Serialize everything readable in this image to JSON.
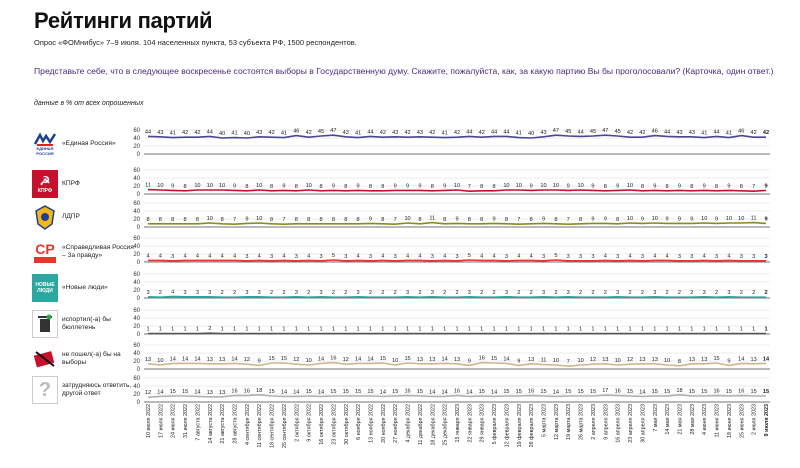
{
  "header": {
    "title": "Рейтинги партий",
    "subtitle": "Опрос «ФОМнибус» 7–9 июля. 104 населенных пункта, 53 субъекта РФ, 1500 респондентов.",
    "question": "Представьте себе, что в следующее воскресенье состоятся выборы в Государственную думу. Скажите, пожалуйста, как, за какую партию Вы бы проголосовали? (Карточка, один ответ.)",
    "units": "данные в % от всех опрошенных"
  },
  "icons": {
    "er": "united-russia-logo",
    "kprf": "kprf-logo",
    "ldpr": "ldpr-logo",
    "sr": "sr-logo",
    "nl": "new-people-logo",
    "spoil": "trash-bin-icon",
    "novote": "no-vote-icon",
    "dk": "question-mark-icon"
  },
  "logo_text": {
    "er_line1": "ЕДИНАЯ",
    "er_line2": "РОССИЯ",
    "kprf": "КПРФ",
    "sr": "СР",
    "nl_line1": "НОВЫЕ",
    "nl_line2": "ЛЮДИ",
    "dk": "?"
  },
  "chart_data": {
    "type": "line",
    "ylim": [
      0,
      60
    ],
    "yticks": [
      0,
      20,
      40,
      60
    ],
    "x": [
      "10 июля 2022",
      "17 июля 2022",
      "24 июля 2022",
      "31 июля 2022",
      "7 августа 2022",
      "14 августа 2022",
      "21 августа 2022",
      "28 августа 2022",
      "4 сентября 2022",
      "11 сентября 2022",
      "18 сентября 2022",
      "25 сентября 2022",
      "2 октября 2022",
      "9 октября 2022",
      "16 октября 2022",
      "23 октября 2022",
      "30 октября 2022",
      "6 ноября 2022",
      "13 ноября 2022",
      "20 ноября 2022",
      "27 ноября 2022",
      "4 декабря 2022",
      "11 декабря 2022",
      "18 декабря 2022",
      "25 декабря 2022",
      "15 января 2023",
      "22 января 2023",
      "29 января 2023",
      "5 февраля 2023",
      "12 февраля 2023",
      "19 февраля 2023",
      "26 февраля 2023",
      "5 марта 2023",
      "12 марта 2023",
      "19 марта 2023",
      "26 марта 2023",
      "2 апреля 2023",
      "9 апреля 2023",
      "16 апреля 2023",
      "23 апреля 2023",
      "30 апреля 2023",
      "7 мая 2023",
      "14 мая 2023",
      "21 мая 2023",
      "28 мая 2023",
      "4 июня 2023",
      "11 июня 2023",
      "18 июня 2023",
      "25 июня 2023",
      "2 июля 2023",
      "9 июля 2023"
    ],
    "series": [
      {
        "label": "«Единая Россия»",
        "color": "#4b4596",
        "values": [
          44,
          43,
          41,
          42,
          42,
          44,
          40,
          41,
          40,
          43,
          42,
          41,
          46,
          42,
          45,
          47,
          43,
          41,
          44,
          42,
          43,
          42,
          43,
          42,
          41,
          42,
          44,
          42,
          44,
          44,
          41,
          40,
          43,
          47,
          45,
          44,
          45,
          47,
          45,
          42,
          42,
          46,
          44,
          43,
          43,
          41,
          44,
          41,
          46,
          42,
          42
        ]
      },
      {
        "label": "КПРФ",
        "color": "#c8102e",
        "values": [
          11,
          10,
          9,
          8,
          10,
          10,
          10,
          9,
          8,
          10,
          8,
          9,
          8,
          10,
          8,
          9,
          8,
          9,
          8,
          8,
          9,
          9,
          9,
          8,
          9,
          10,
          7,
          8,
          8,
          10,
          10,
          9,
          10,
          10,
          9,
          10,
          9,
          8,
          9,
          10,
          8,
          9,
          8,
          9,
          8,
          9,
          8,
          9,
          8,
          7,
          9
        ]
      },
      {
        "label": "ЛДПР",
        "color": "#8a8a1a",
        "values": [
          8,
          8,
          8,
          8,
          8,
          10,
          8,
          7,
          9,
          10,
          8,
          7,
          8,
          8,
          8,
          8,
          8,
          8,
          9,
          8,
          7,
          10,
          8,
          11,
          8,
          9,
          8,
          8,
          9,
          8,
          7,
          8,
          9,
          8,
          7,
          8,
          9,
          9,
          8,
          10,
          9,
          10,
          9,
          9,
          9,
          10,
          9,
          10,
          10,
          11,
          9
        ]
      },
      {
        "label": "«Справедливая Россия – За правду»",
        "color": "#e8352b",
        "values": [
          4,
          4,
          3,
          4,
          4,
          4,
          4,
          4,
          3,
          4,
          3,
          4,
          3,
          4,
          3,
          5,
          3,
          4,
          3,
          4,
          3,
          4,
          4,
          3,
          4,
          3,
          5,
          4,
          4,
          3,
          4,
          4,
          3,
          5,
          3,
          3,
          3,
          4,
          3,
          4,
          3,
          4,
          4,
          3,
          3,
          4,
          3,
          4,
          3,
          3,
          3
        ]
      },
      {
        "label": "«Новые люди»",
        "color": "#2aa8a0",
        "values": [
          3,
          2,
          4,
          3,
          3,
          3,
          2,
          2,
          3,
          3,
          2,
          2,
          3,
          2,
          3,
          2,
          2,
          3,
          2,
          2,
          2,
          3,
          2,
          3,
          2,
          2,
          3,
          2,
          2,
          3,
          2,
          2,
          3,
          2,
          3,
          2,
          2,
          2,
          3,
          2,
          2,
          3,
          2,
          2,
          2,
          3,
          2,
          3,
          2,
          2,
          2
        ]
      },
      {
        "label": "испортил(-а) бы бюллетень",
        "color": "#555555",
        "values": [
          1,
          1,
          1,
          1,
          1,
          2,
          1,
          1,
          1,
          1,
          1,
          1,
          1,
          1,
          1,
          1,
          1,
          1,
          1,
          1,
          1,
          1,
          1,
          1,
          1,
          1,
          1,
          1,
          1,
          1,
          1,
          1,
          1,
          1,
          1,
          1,
          1,
          1,
          1,
          1,
          1,
          1,
          1,
          1,
          1,
          1,
          1,
          1,
          1,
          1,
          1
        ]
      },
      {
        "label": "не пошел(-а) бы на выборы",
        "color": "#d2b48c",
        "values": [
          13,
          10,
          14,
          14,
          14,
          13,
          13,
          14,
          12,
          9,
          15,
          15,
          12,
          10,
          14,
          16,
          12,
          14,
          14,
          15,
          10,
          15,
          13,
          13,
          14,
          13,
          9,
          16,
          15,
          14,
          9,
          13,
          11,
          10,
          7,
          10,
          12,
          13,
          10,
          12,
          13,
          13,
          10,
          8,
          13,
          13,
          15,
          9,
          14,
          13,
          14
        ]
      },
      {
        "label": "затрудняюсь ответить, другой ответ",
        "color": "#b0b0b0",
        "values": [
          12,
          14,
          15,
          15,
          14,
          13,
          13,
          16,
          16,
          18,
          15,
          14,
          14,
          15,
          14,
          15,
          15,
          15,
          15,
          14,
          15,
          16,
          15,
          14,
          14,
          16,
          14,
          15,
          14,
          15,
          15,
          16,
          15,
          14,
          15,
          15,
          15,
          17,
          16,
          15,
          14,
          15,
          15,
          18,
          15,
          15,
          16,
          15,
          16,
          15,
          15
        ]
      }
    ]
  }
}
